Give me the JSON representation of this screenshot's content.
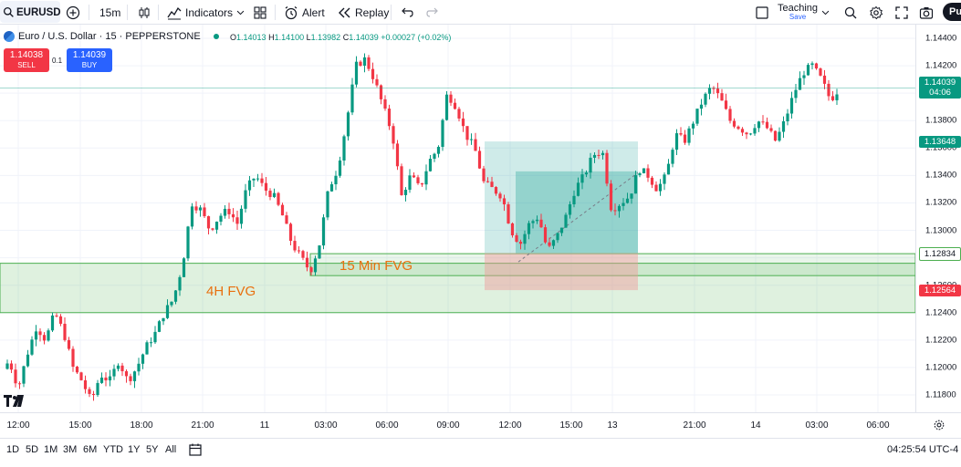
{
  "toolbar": {
    "symbol": "EURUSD",
    "interval": "15m",
    "indicators_label": "Indicators",
    "alert_label": "Alert",
    "replay_label": "Replay",
    "layout_name": "Teaching",
    "layout_status": "Save",
    "publish_label": "Pu"
  },
  "legend": {
    "title": "Euro / U.S. Dollar · 15 · PEPPERSTONE",
    "o_label": "O",
    "o": "1.14013",
    "h_label": "H",
    "h": "1.14100",
    "l_label": "L",
    "l": "1.13982",
    "c_label": "C",
    "c": "1.14039",
    "change": "+0.00027 (+0.02%)"
  },
  "trade": {
    "sell_price": "1.14038",
    "sell_label": "SELL",
    "spread": "0.1",
    "buy_price": "1.14039",
    "buy_label": "BUY"
  },
  "annotations": {
    "fvg_4h": "4H FVG",
    "fvg_15m": "15 Min FVG"
  },
  "price_axis": {
    "ticks": [
      "1.14400",
      "1.14200",
      "1.14000",
      "1.13800",
      "1.13600",
      "1.13400",
      "1.13200",
      "1.13000",
      "1.12800",
      "1.12600",
      "1.12400",
      "1.12200",
      "1.12000",
      "1.11800"
    ],
    "last_price": "1.14039",
    "countdown": "04:06",
    "level_tp": "1.13648",
    "level_entry": "1.12834",
    "level_stop": "1.12564"
  },
  "time_axis": {
    "ticks": [
      "12:00",
      "15:00",
      "18:00",
      "21:00",
      "11",
      "03:00",
      "06:00",
      "09:00",
      "12:00",
      "15:00",
      "13",
      "21:00",
      "14",
      "03:00",
      "06:00"
    ]
  },
  "bottom": {
    "ranges": [
      "1D",
      "5D",
      "1M",
      "3M",
      "6M",
      "YTD",
      "1Y",
      "5Y",
      "All"
    ],
    "clock": "04:25:54 UTC-4"
  },
  "colors": {
    "up": "#089981",
    "down": "#f23645",
    "zone_green": "#4caf50",
    "target": "#26a69a",
    "stop": "#ef9a9a",
    "fvg_label": "#e8700f"
  },
  "chart_data": {
    "type": "candlestick",
    "symbol": "EURUSD",
    "interval": "15",
    "ylim": [
      1.1165,
      1.1446
    ],
    "approx_close_path": [
      [
        0,
        1.1195
      ],
      [
        10,
        1.1205
      ],
      [
        20,
        1.1185
      ],
      [
        30,
        1.121
      ],
      [
        40,
        1.123
      ],
      [
        50,
        1.122
      ],
      [
        60,
        1.124
      ],
      [
        70,
        1.1225
      ],
      [
        80,
        1.12
      ],
      [
        90,
        1.119
      ],
      [
        100,
        1.1175
      ],
      [
        110,
        1.1195
      ],
      [
        120,
        1.119
      ],
      [
        130,
        1.1205
      ],
      [
        140,
        1.119
      ],
      [
        150,
        1.12
      ],
      [
        160,
        1.1215
      ],
      [
        170,
        1.1225
      ],
      [
        180,
        1.124
      ],
      [
        190,
        1.125
      ],
      [
        200,
        1.1275
      ],
      [
        210,
        1.132
      ],
      [
        220,
        1.1315
      ],
      [
        230,
        1.13
      ],
      [
        240,
        1.131
      ],
      [
        250,
        1.1315
      ],
      [
        260,
        1.1305
      ],
      [
        270,
        1.133
      ],
      [
        280,
        1.134
      ],
      [
        290,
        1.133
      ],
      [
        300,
        1.1325
      ],
      [
        310,
        1.131
      ],
      [
        320,
        1.129
      ],
      [
        330,
        1.128
      ],
      [
        340,
        1.127
      ],
      [
        350,
        1.129
      ],
      [
        360,
        1.133
      ],
      [
        370,
        1.1345
      ],
      [
        380,
        1.138
      ],
      [
        390,
        1.142
      ],
      [
        400,
        1.1425
      ],
      [
        410,
        1.141
      ],
      [
        420,
        1.139
      ],
      [
        430,
        1.137
      ],
      [
        440,
        1.1325
      ],
      [
        450,
        1.134
      ],
      [
        460,
        1.133
      ],
      [
        470,
        1.135
      ],
      [
        480,
        1.136
      ],
      [
        490,
        1.14
      ],
      [
        500,
        1.139
      ],
      [
        510,
        1.137
      ],
      [
        520,
        1.136
      ],
      [
        530,
        1.1335
      ],
      [
        540,
        1.133
      ],
      [
        550,
        1.1325
      ],
      [
        560,
        1.13
      ],
      [
        570,
        1.129
      ],
      [
        580,
        1.1305
      ],
      [
        590,
        1.131
      ],
      [
        600,
        1.1285
      ],
      [
        610,
        1.1295
      ],
      [
        620,
        1.131
      ],
      [
        630,
        1.133
      ],
      [
        640,
        1.134
      ],
      [
        650,
        1.1355
      ],
      [
        660,
        1.1358
      ],
      [
        670,
        1.1315
      ],
      [
        680,
        1.132
      ],
      [
        690,
        1.1325
      ],
      [
        700,
        1.1345
      ],
      [
        710,
        1.134
      ],
      [
        720,
        1.133
      ],
      [
        730,
        1.134
      ],
      [
        740,
        1.137
      ],
      [
        750,
        1.1365
      ],
      [
        760,
        1.138
      ],
      [
        770,
        1.1395
      ],
      [
        780,
        1.1405
      ],
      [
        790,
        1.1395
      ],
      [
        800,
        1.138
      ],
      [
        810,
        1.1375
      ],
      [
        820,
        1.137
      ],
      [
        830,
        1.138
      ],
      [
        840,
        1.1375
      ],
      [
        850,
        1.1365
      ],
      [
        860,
        1.138
      ],
      [
        870,
        1.14
      ],
      [
        880,
        1.1415
      ],
      [
        890,
        1.142
      ],
      [
        900,
        1.141
      ],
      [
        910,
        1.1395
      ],
      [
        920,
        1.1404
      ]
    ],
    "zones": [
      {
        "from": 1.124,
        "to": 1.1276
      },
      {
        "from": 1.1267,
        "to": 1.1283
      }
    ],
    "long_position": {
      "entry": 1.12834,
      "target": 1.13648,
      "stop": 1.12564
    }
  }
}
